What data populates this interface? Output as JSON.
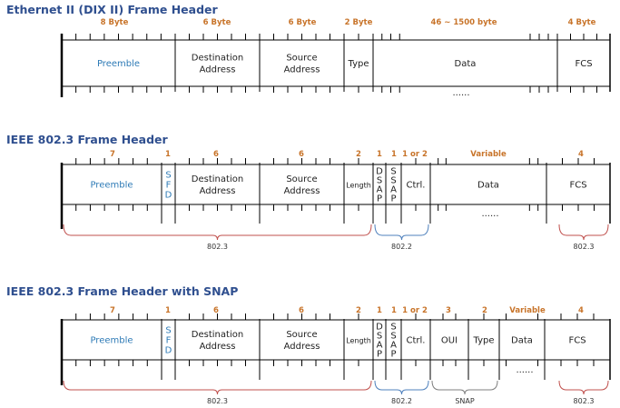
{
  "frames": [
    {
      "title": "Ethernet II (DIX II) Frame Header",
      "dots": "......",
      "fields": [
        {
          "size": "8 Byte",
          "name": "Preemble",
          "style": "blue"
        },
        {
          "size": "6 Byte",
          "name": "Destination\nAddress"
        },
        {
          "size": "6 Byte",
          "name": "Source\nAddress"
        },
        {
          "size": "2 Byte",
          "name": "Type"
        },
        {
          "size": "46 ~ 1500 byte",
          "name": "Data"
        },
        {
          "size": "4 Byte",
          "name": "FCS"
        }
      ],
      "braces": []
    },
    {
      "title": "IEEE 802.3 Frame Header",
      "dots": "......",
      "fields": [
        {
          "size": "7",
          "name": "Preemble",
          "style": "blue"
        },
        {
          "size": "1",
          "name": "S\nF\nD",
          "style": "blue-vert"
        },
        {
          "size": "6",
          "name": "Destination\nAddress"
        },
        {
          "size": "6",
          "name": "Source\nAddress"
        },
        {
          "size": "2",
          "name": "Length",
          "style": "small"
        },
        {
          "size": "1",
          "name": "D\nS\nA\nP",
          "style": "vert"
        },
        {
          "size": "1",
          "name": "S\nS\nA\nP",
          "style": "vert"
        },
        {
          "size": "1 or 2",
          "name": "Ctrl."
        },
        {
          "size": "Variable",
          "name": "Data"
        },
        {
          "size": "4",
          "name": "FCS"
        }
      ],
      "braces": [
        {
          "label": "802.3",
          "color": "#c0504d"
        },
        {
          "label": "802.2",
          "color": "#4f81bd"
        },
        {
          "label": "802.3",
          "color": "#c0504d"
        }
      ]
    },
    {
      "title": "IEEE 802.3 Frame Header with SNAP",
      "dots": "......",
      "fields": [
        {
          "size": "7",
          "name": "Preemble",
          "style": "blue"
        },
        {
          "size": "1",
          "name": "S\nF\nD",
          "style": "blue-vert"
        },
        {
          "size": "6",
          "name": "Destination\nAddress"
        },
        {
          "size": "6",
          "name": "Source\nAddress"
        },
        {
          "size": "2",
          "name": "Length",
          "style": "small"
        },
        {
          "size": "1",
          "name": "D\nS\nA\nP",
          "style": "vert"
        },
        {
          "size": "1",
          "name": "S\nS\nA\nP",
          "style": "vert"
        },
        {
          "size": "1 or 2",
          "name": "Ctrl."
        },
        {
          "size": "3",
          "name": "OUI"
        },
        {
          "size": "2",
          "name": "Type"
        },
        {
          "size": "Variable",
          "name": "Data"
        },
        {
          "size": "4",
          "name": "FCS"
        }
      ],
      "braces": [
        {
          "label": "802.3",
          "color": "#c0504d"
        },
        {
          "label": "802.2",
          "color": "#4f81bd"
        },
        {
          "label": "SNAP",
          "color": "#7f7f7f"
        },
        {
          "label": "802.3",
          "color": "#c0504d"
        }
      ]
    }
  ],
  "colors": {
    "title": "#2f4f8f",
    "size_label": "#c8742a",
    "preamble_text": "#2d7ab6",
    "line": "#000000"
  }
}
